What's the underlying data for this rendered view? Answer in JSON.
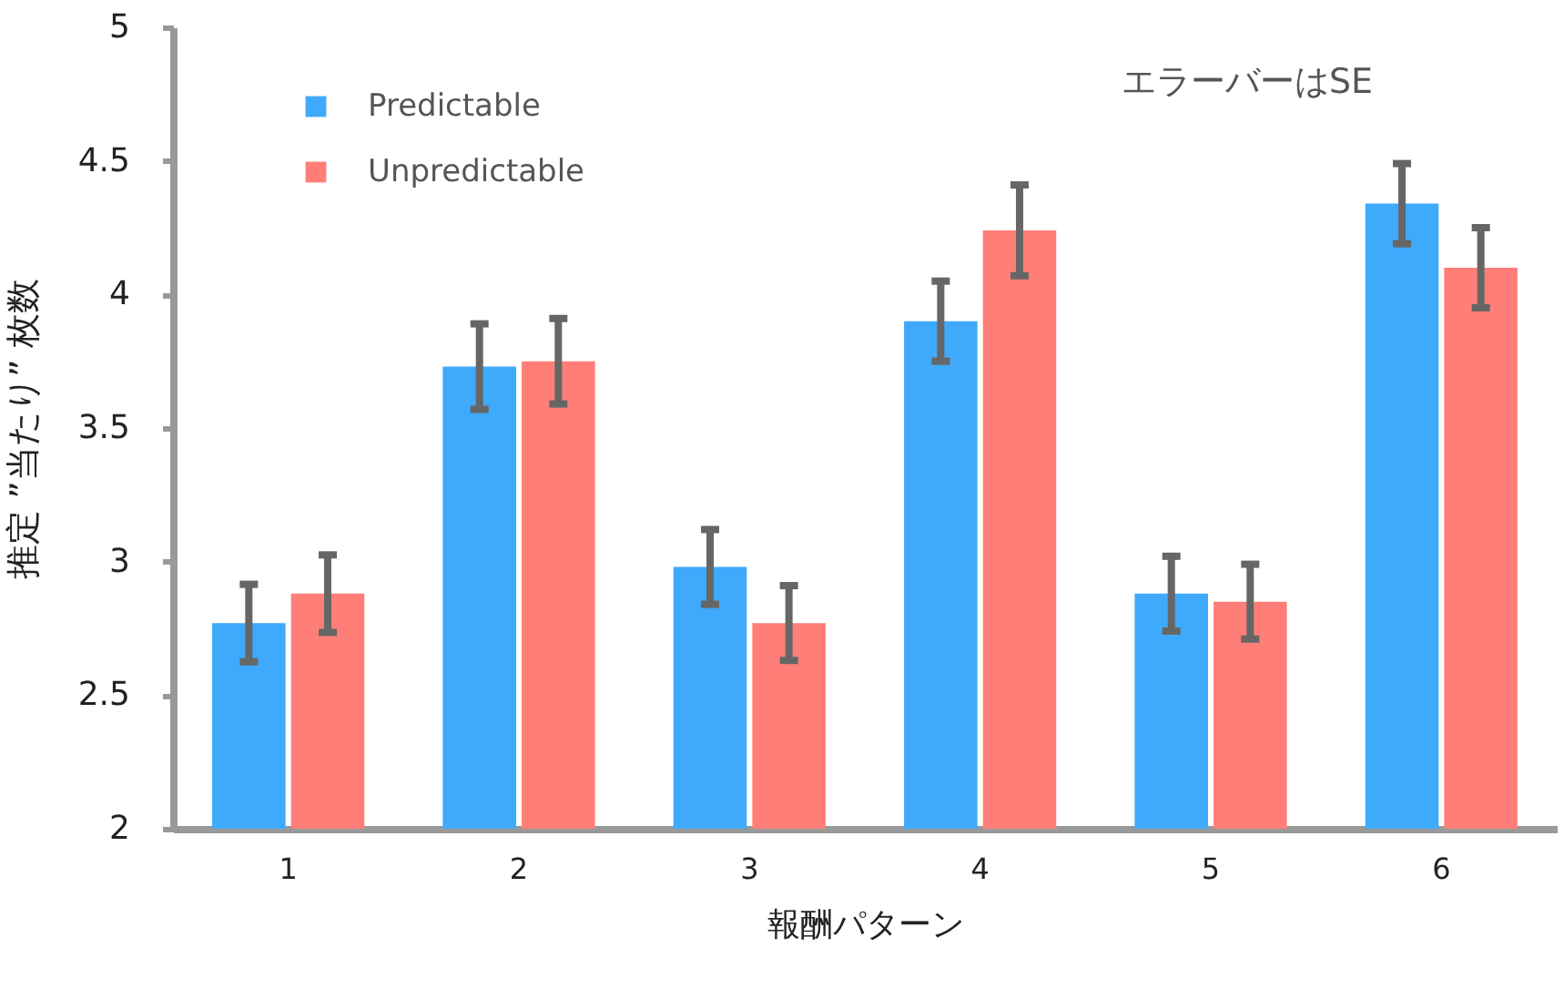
{
  "chart_data": {
    "type": "bar",
    "xlabel": "報酬パターン",
    "ylabel": "推定 ”当たり” 枚数",
    "annotations": [
      "エラーバーはSE"
    ],
    "categories": [
      "1",
      "2",
      "3",
      "4",
      "5",
      "6"
    ],
    "series": [
      {
        "name": "Predictable",
        "color": "#3fa9fb",
        "values": [
          2.77,
          3.73,
          2.98,
          3.9,
          2.88,
          4.34
        ],
        "errors": [
          0.145,
          0.16,
          0.14,
          0.15,
          0.14,
          0.15
        ]
      },
      {
        "name": "Unpredictable",
        "color": "#ff7f78",
        "values": [
          2.88,
          3.75,
          2.77,
          4.24,
          2.85,
          4.1
        ],
        "errors": [
          0.145,
          0.16,
          0.14,
          0.17,
          0.14,
          0.15
        ]
      }
    ],
    "ylim": [
      2,
      5
    ],
    "yticks": [
      2,
      2.5,
      3,
      3.5,
      4,
      4.5,
      5
    ],
    "grid": false,
    "legend": "top left"
  }
}
